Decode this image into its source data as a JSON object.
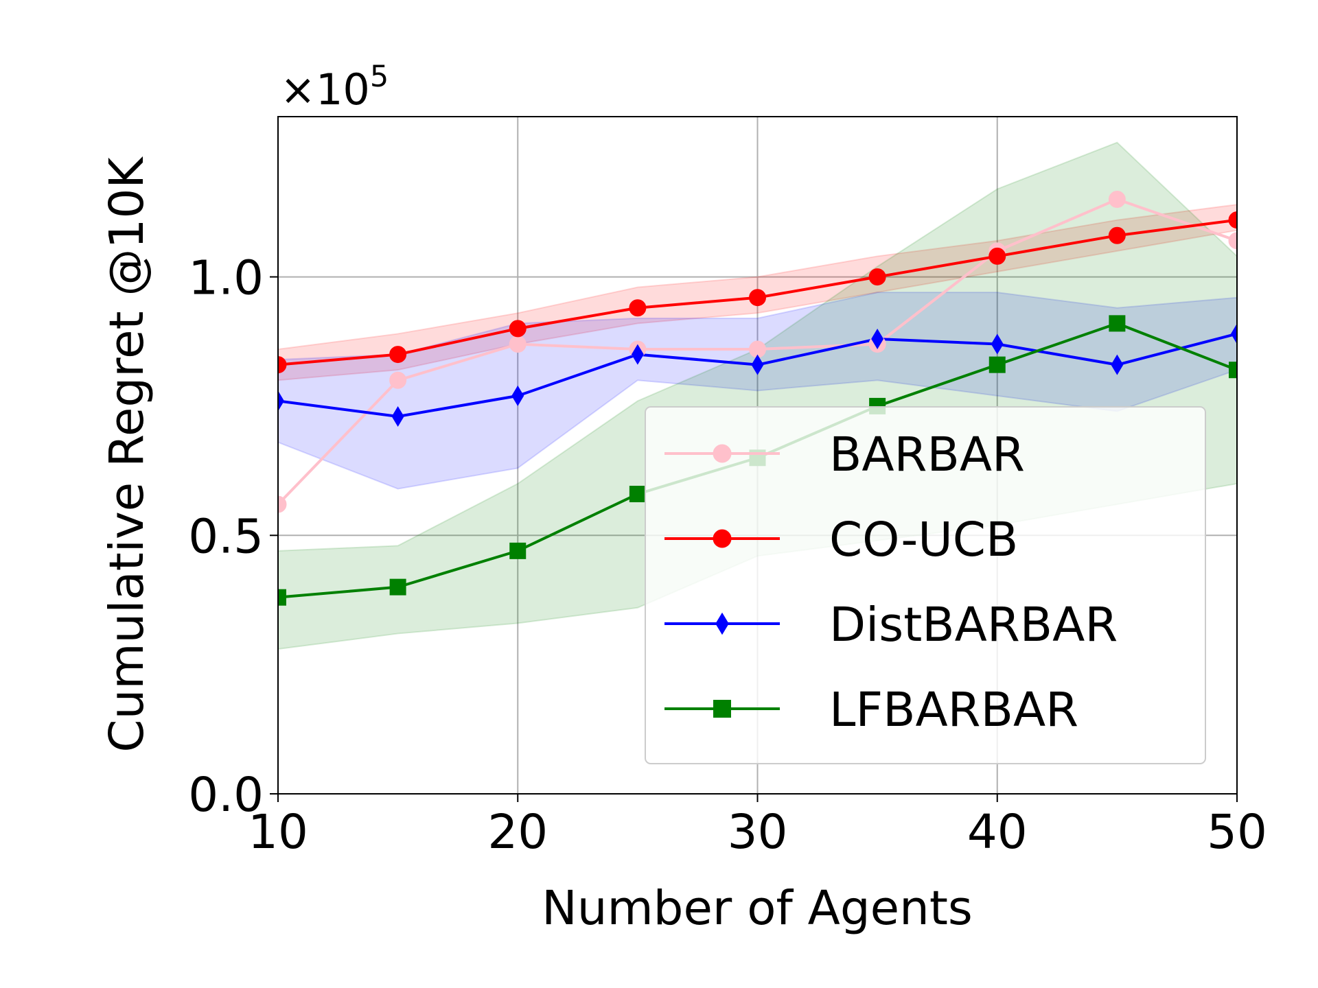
{
  "chart_data": {
    "type": "line",
    "title": "",
    "xlabel": "Number of Agents",
    "ylabel": "Cumulative Regret @10K",
    "y_multiplier": {
      "prefix": "×10",
      "exponent": "5"
    },
    "x": [
      10,
      15,
      20,
      25,
      30,
      35,
      40,
      45,
      50
    ],
    "xlim": [
      10,
      50
    ],
    "ylim": [
      0,
      1.31
    ],
    "xticks": [
      10,
      20,
      30,
      40,
      50
    ],
    "yticks": [
      0.0,
      0.5,
      1.0
    ],
    "xtick_labels": [
      "10",
      "20",
      "30",
      "40",
      "50"
    ],
    "ytick_labels": [
      "0.0",
      "0.5",
      "1.0"
    ],
    "grid": true,
    "legend_position": "center-right",
    "series": [
      {
        "name": "BARBAR",
        "color": "#ffc0cb",
        "marker": "circle",
        "values": [
          0.56,
          0.8,
          0.87,
          0.86,
          0.86,
          0.87,
          1.05,
          1.15,
          1.07
        ],
        "band": null
      },
      {
        "name": "CO-UCB",
        "color": "#ff0000",
        "marker": "circle",
        "values": [
          0.83,
          0.85,
          0.9,
          0.94,
          0.96,
          1.0,
          1.04,
          1.08,
          1.11
        ],
        "band": {
          "low": [
            0.8,
            0.82,
            0.87,
            0.91,
            0.93,
            0.97,
            1.01,
            1.05,
            1.09
          ],
          "high": [
            0.86,
            0.89,
            0.93,
            0.98,
            1.0,
            1.04,
            1.07,
            1.11,
            1.14
          ]
        }
      },
      {
        "name": "DistBARBAR",
        "color": "#0000ff",
        "marker": "diamond",
        "values": [
          0.76,
          0.73,
          0.77,
          0.85,
          0.83,
          0.88,
          0.87,
          0.83,
          0.89
        ],
        "band": {
          "low": [
            0.68,
            0.59,
            0.63,
            0.8,
            0.78,
            0.8,
            0.77,
            0.74,
            0.82
          ],
          "high": [
            0.84,
            0.85,
            0.91,
            0.92,
            0.92,
            0.97,
            0.97,
            0.94,
            0.96
          ]
        }
      },
      {
        "name": "LFBARBAR",
        "color": "#008000",
        "marker": "square",
        "values": [
          0.38,
          0.4,
          0.47,
          0.58,
          0.65,
          0.75,
          0.83,
          0.91,
          0.82
        ],
        "band": {
          "low": [
            0.28,
            0.31,
            0.33,
            0.36,
            0.46,
            0.49,
            0.52,
            0.56,
            0.6
          ],
          "high": [
            0.47,
            0.48,
            0.6,
            0.76,
            0.86,
            1.02,
            1.17,
            1.26,
            1.04
          ]
        }
      }
    ]
  }
}
